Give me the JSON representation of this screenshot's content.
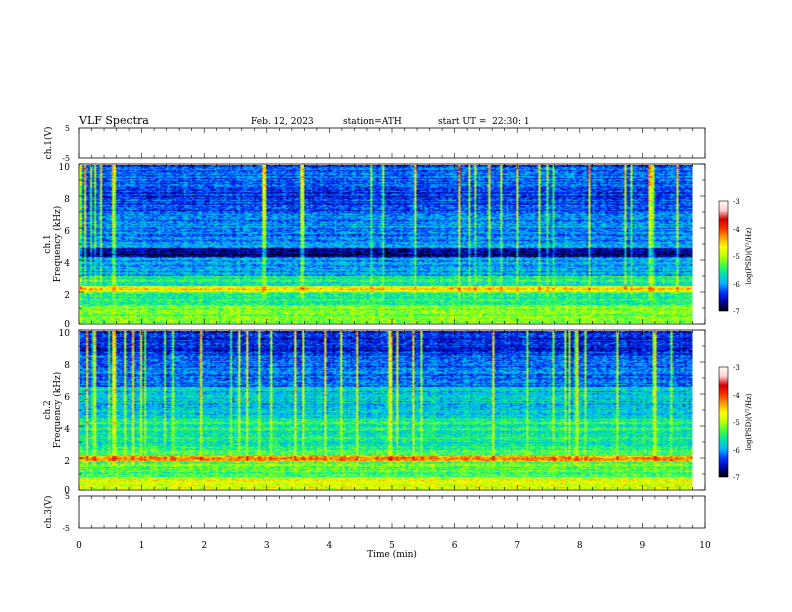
{
  "header": {
    "title": "VLF Spectra",
    "date": "Feb. 12, 2023",
    "station": "station=ATH",
    "start_ut": "start UT =  22:30: 1"
  },
  "chart_data": [
    {
      "type": "line",
      "panel": "ch1-waveform",
      "ylabel": "ch.1(V)",
      "ylim": [
        -5,
        5
      ],
      "yticks": [
        "5",
        "-5"
      ],
      "baseline_v": 0,
      "xlim": [
        0,
        10
      ]
    },
    {
      "type": "heatmap",
      "panel": "ch1-spectrogram",
      "ylabel_lines": [
        "ch.1",
        "Frequency (kHz)"
      ],
      "ylim": [
        0,
        10
      ],
      "yticks": [
        "10",
        "8",
        "6",
        "4",
        "2",
        "0"
      ],
      "xlim": [
        0,
        10
      ],
      "data_end_min": 9.8,
      "colorbar": {
        "label": "log(PSD)(V²/Hz)",
        "range": [
          -7,
          -3
        ],
        "ticks": [
          "-3",
          "-4",
          "-5",
          "-6",
          "-7"
        ],
        "colors": [
          "#000000",
          "#0000a0",
          "#0030ff",
          "#00b0ff",
          "#00e0b0",
          "#40ff40",
          "#c0ff00",
          "#ffff00",
          "#ffa000",
          "#ff3000",
          "#d00000",
          "#ffd0d0",
          "#ffffff"
        ]
      }
    },
    {
      "type": "heatmap",
      "panel": "ch2-spectrogram",
      "ylabel_lines": [
        "ch.2",
        "Frequency (kHz)"
      ],
      "ylim": [
        0,
        10
      ],
      "yticks": [
        "10",
        "8",
        "6",
        "4",
        "2",
        "0"
      ],
      "xlim": [
        0,
        10
      ],
      "data_end_min": 9.8,
      "colorbar": {
        "label": "log(PSD)(V²/Hz)",
        "range": [
          -7,
          -3
        ],
        "ticks": [
          "-3",
          "-4",
          "-5",
          "-6",
          "-7"
        ],
        "colors": [
          "#000000",
          "#0000a0",
          "#0030ff",
          "#00b0ff",
          "#00e0b0",
          "#40ff40",
          "#c0ff00",
          "#ffff00",
          "#ffa000",
          "#ff3000",
          "#d00000",
          "#ffd0d0",
          "#ffffff"
        ]
      }
    },
    {
      "type": "line",
      "panel": "ch3-waveform",
      "ylabel": "ch.3(V)",
      "ylim": [
        -5,
        5
      ],
      "yticks": [
        "5",
        "-5"
      ],
      "baseline_v": 0,
      "xlim": [
        0,
        10
      ]
    }
  ],
  "xaxis": {
    "label": "Time (min)",
    "ticks": [
      "0",
      "1",
      "2",
      "3",
      "4",
      "5",
      "6",
      "7",
      "8",
      "9",
      "10"
    ]
  }
}
